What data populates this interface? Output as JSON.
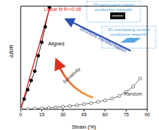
{
  "chart_data": {
    "type": "line",
    "x_label": "Strain (%)",
    "y_label": "ΔR/R",
    "xlim": [
      0,
      90
    ],
    "xticks": [
      0,
      15,
      30,
      45,
      60,
      75,
      90
    ],
    "ylim": [
      0,
      100
    ],
    "tick_labels": "x",
    "grid": false,
    "series": [
      {
        "name": "Aligned",
        "color": "#000000",
        "marker": "circle",
        "line_style": "solid",
        "x": [
          0,
          2.5,
          5,
          7.5,
          10,
          12.5,
          15,
          17.5,
          20.5
        ],
        "values": [
          0,
          10,
          19,
          28,
          37,
          52,
          65,
          80,
          99
        ]
      },
      {
        "name": "Random",
        "color": "#555555",
        "marker": "open_circle",
        "line_style": "solid",
        "x": [
          0,
          5,
          10,
          15,
          20,
          25,
          30,
          35,
          40,
          45,
          50,
          55,
          60,
          65,
          70,
          75,
          80,
          85
        ],
        "values": [
          0,
          0.3,
          0.6,
          1,
          1.5,
          2,
          2.6,
          3.3,
          4,
          5,
          6,
          7.2,
          8.7,
          10.5,
          13,
          17,
          22,
          30
        ]
      },
      {
        "name": "Linear fit R²=0.98",
        "color": "#e02020",
        "marker": "none",
        "line_style": "solid",
        "x": [
          0,
          21
        ],
        "values": [
          0,
          100
        ]
      }
    ],
    "annotations": [
      "2D end-to-end contact conductive networks",
      "3D overlapping contact conductive networks",
      "Structure transformation",
      "Sensitivity"
    ]
  }
}
